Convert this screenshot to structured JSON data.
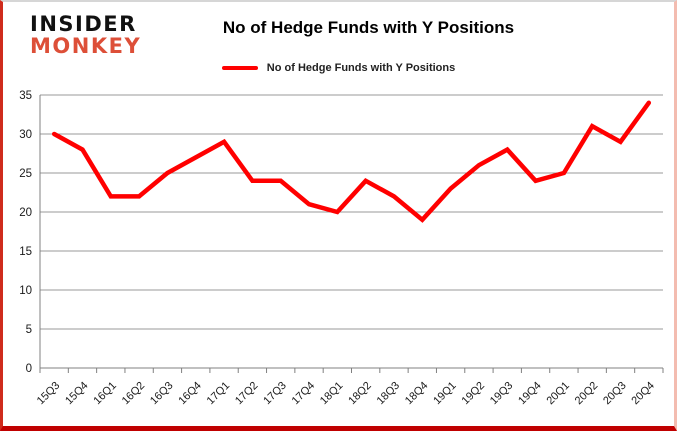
{
  "branding": {
    "line1": "INSIDER",
    "line2": "MONKEY",
    "accent_color": "#dd4f38"
  },
  "header": {
    "title": "No of Hedge Funds with Y Positions"
  },
  "legend": {
    "label": "No of Hedge Funds with Y Positions",
    "line_color": "#ff0000"
  },
  "chart_data": {
    "type": "line",
    "title": "No of Hedge Funds with Y Positions",
    "categories": [
      "15Q3",
      "15Q4",
      "16Q1",
      "16Q2",
      "16Q3",
      "16Q4",
      "17Q1",
      "17Q2",
      "17Q3",
      "17Q4",
      "18Q1",
      "18Q2",
      "18Q3",
      "18Q4",
      "19Q1",
      "19Q2",
      "19Q3",
      "19Q4",
      "20Q1",
      "20Q2",
      "20Q3",
      "20Q4"
    ],
    "series": [
      {
        "name": "No of Hedge Funds with Y Positions",
        "color": "#ff0000",
        "values": [
          30,
          28,
          22,
          22,
          25,
          27,
          29,
          24,
          24,
          21,
          20,
          24,
          22,
          19,
          23,
          26,
          28,
          24,
          25,
          31,
          29,
          34
        ]
      }
    ],
    "xlabel": "",
    "ylabel": "",
    "ylim": [
      0,
      35
    ],
    "ytick_interval": 5,
    "grid": "horizontal",
    "gridline_color": "#999999",
    "axis_color": "#808080",
    "tick_label_color": "#1a1a1a",
    "legend_position": "top"
  }
}
